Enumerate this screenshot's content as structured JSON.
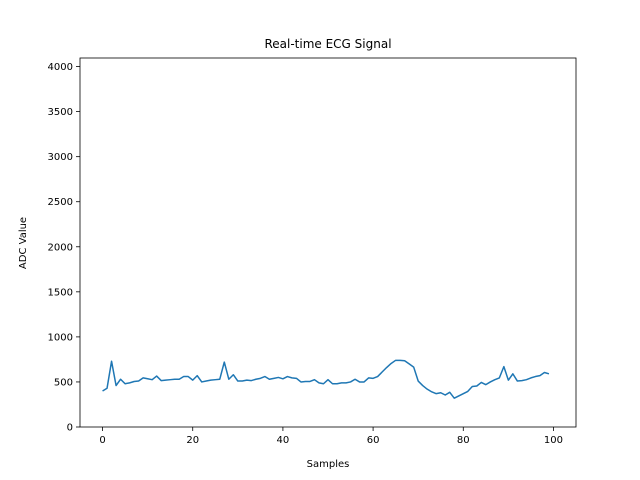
{
  "chart_data": {
    "type": "line",
    "title": "Real-time ECG Signal",
    "xlabel": "Samples",
    "ylabel": "ADC Value",
    "xlim": [
      -5,
      105
    ],
    "ylim": [
      0,
      4095
    ],
    "xticks": [
      0,
      20,
      40,
      60,
      80,
      100
    ],
    "yticks": [
      0,
      500,
      1000,
      1500,
      2000,
      2500,
      3000,
      3500,
      4000
    ],
    "grid": false,
    "series": [
      {
        "color": "#1f77b4",
        "x": [
          0,
          1,
          2,
          3,
          4,
          5,
          6,
          7,
          8,
          9,
          10,
          11,
          12,
          13,
          14,
          15,
          16,
          17,
          18,
          19,
          20,
          21,
          22,
          23,
          24,
          25,
          26,
          27,
          28,
          29,
          30,
          31,
          32,
          33,
          34,
          35,
          36,
          37,
          38,
          39,
          40,
          41,
          42,
          43,
          44,
          45,
          46,
          47,
          48,
          49,
          50,
          51,
          52,
          53,
          54,
          55,
          56,
          57,
          58,
          59,
          60,
          61,
          62,
          63,
          64,
          65,
          66,
          67,
          68,
          69,
          70,
          71,
          72,
          73,
          74,
          75,
          76,
          77,
          78,
          79,
          80,
          81,
          82,
          83,
          84,
          85,
          86,
          87,
          88,
          89,
          90,
          91,
          92,
          93,
          94,
          95,
          96,
          97,
          98,
          99
        ],
        "y": [
          400,
          430,
          730,
          460,
          530,
          480,
          490,
          505,
          510,
          545,
          535,
          525,
          565,
          515,
          520,
          525,
          530,
          530,
          560,
          560,
          520,
          570,
          500,
          510,
          520,
          525,
          530,
          720,
          530,
          580,
          510,
          510,
          520,
          515,
          530,
          540,
          560,
          530,
          540,
          550,
          535,
          560,
          545,
          540,
          500,
          505,
          505,
          525,
          490,
          480,
          525,
          480,
          480,
          490,
          490,
          500,
          530,
          500,
          500,
          545,
          540,
          560,
          610,
          660,
          705,
          740,
          740,
          735,
          700,
          665,
          510,
          460,
          420,
          390,
          370,
          380,
          355,
          385,
          320,
          345,
          370,
          395,
          450,
          455,
          495,
          470,
          500,
          525,
          545,
          670,
          520,
          590,
          510,
          515,
          525,
          545,
          560,
          570,
          605,
          590
        ]
      }
    ]
  }
}
